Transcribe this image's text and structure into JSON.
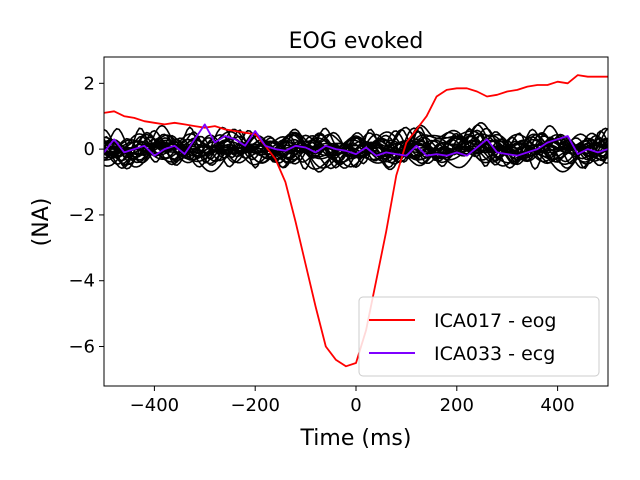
{
  "chart_data": {
    "type": "line",
    "title": "EOG evoked",
    "xlabel": "Time (ms)",
    "ylabel": "(NA)",
    "xlim": [
      -500,
      500
    ],
    "ylim": [
      -7.2,
      2.8
    ],
    "x_ticks": [
      -400,
      -200,
      0,
      200,
      400
    ],
    "y_ticks": [
      2,
      0,
      -2,
      -4,
      -6
    ],
    "x_tick_labels": [
      "−400",
      "−200",
      "0",
      "200",
      "400"
    ],
    "y_tick_labels": [
      "2",
      "0",
      "−2",
      "−4",
      "−6"
    ],
    "grid": false,
    "legend_position": "lower-right",
    "series": [
      {
        "name": "ICA017 - eog",
        "color": "#ff0000",
        "x": [
          -500,
          -480,
          -460,
          -440,
          -420,
          -400,
          -380,
          -360,
          -340,
          -320,
          -300,
          -280,
          -260,
          -240,
          -220,
          -200,
          -180,
          -160,
          -140,
          -120,
          -100,
          -80,
          -60,
          -40,
          -20,
          0,
          20,
          40,
          60,
          80,
          100,
          120,
          140,
          160,
          180,
          200,
          220,
          240,
          260,
          280,
          300,
          320,
          340,
          360,
          380,
          400,
          420,
          440,
          460,
          480,
          500
        ],
        "y": [
          1.1,
          1.15,
          1.0,
          0.95,
          0.85,
          0.8,
          0.75,
          0.8,
          0.75,
          0.7,
          0.65,
          0.7,
          0.6,
          0.55,
          0.5,
          0.45,
          0.1,
          -0.3,
          -1.0,
          -2.2,
          -3.5,
          -4.8,
          -6.0,
          -6.4,
          -6.6,
          -6.5,
          -5.5,
          -4.0,
          -2.5,
          -0.8,
          0.2,
          0.6,
          1.0,
          1.6,
          1.8,
          1.85,
          1.85,
          1.75,
          1.6,
          1.65,
          1.75,
          1.8,
          1.9,
          1.95,
          1.95,
          2.05,
          2.0,
          2.25,
          2.2,
          2.2,
          2.2
        ]
      },
      {
        "name": "ICA033 - ecg",
        "color": "#7f00ff",
        "x": [
          -500,
          -480,
          -460,
          -440,
          -420,
          -400,
          -380,
          -360,
          -340,
          -320,
          -300,
          -280,
          -260,
          -240,
          -220,
          -200,
          -180,
          -160,
          -140,
          -120,
          -100,
          -80,
          -60,
          -40,
          -20,
          0,
          20,
          40,
          60,
          80,
          100,
          120,
          140,
          160,
          180,
          200,
          220,
          240,
          260,
          280,
          300,
          320,
          340,
          360,
          380,
          400,
          420,
          440,
          460,
          480,
          500
        ],
        "y": [
          -0.1,
          0.3,
          -0.1,
          0.0,
          0.1,
          -0.2,
          0.0,
          0.1,
          -0.15,
          0.3,
          0.75,
          0.2,
          0.4,
          0.3,
          0.1,
          0.55,
          0.1,
          0.0,
          -0.05,
          0.1,
          0.05,
          -0.1,
          0.1,
          0.0,
          -0.05,
          -0.15,
          0.05,
          -0.2,
          -0.1,
          -0.15,
          -0.2,
          0.1,
          -0.2,
          -0.15,
          -0.2,
          -0.1,
          -0.2,
          0.05,
          0.3,
          -0.1,
          -0.15,
          -0.2,
          -0.1,
          0.0,
          0.2,
          0.3,
          0.4,
          -0.15,
          0.0,
          -0.1,
          0.0
        ]
      }
    ]
  }
}
